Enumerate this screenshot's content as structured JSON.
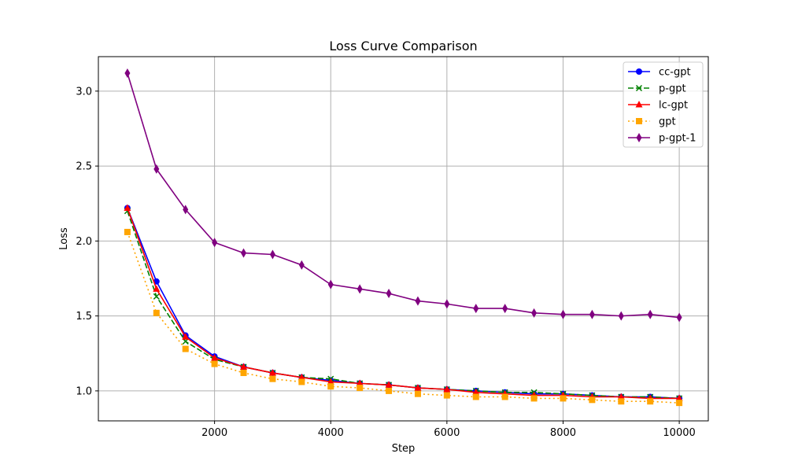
{
  "chart_data": {
    "type": "line",
    "title": "Loss Curve Comparison",
    "xlabel": "Step",
    "ylabel": "Loss",
    "xlim": [
      0,
      10500
    ],
    "ylim": [
      0.8,
      3.23
    ],
    "xticks": [
      2000,
      4000,
      6000,
      8000,
      10000
    ],
    "yticks": [
      1.0,
      1.5,
      2.0,
      2.5,
      3.0
    ],
    "xtick_labels": [
      "2000",
      "4000",
      "6000",
      "8000",
      "10000"
    ],
    "ytick_labels": [
      "1.0",
      "1.5",
      "2.0",
      "2.5",
      "3.0"
    ],
    "grid": true,
    "legend_position": "top-right",
    "x": [
      500,
      1000,
      1500,
      2000,
      2500,
      3000,
      3500,
      4000,
      4500,
      5000,
      5500,
      6000,
      6500,
      7000,
      7500,
      8000,
      8500,
      9000,
      9500,
      10000
    ],
    "series": [
      {
        "name": "cc-gpt",
        "color": "#0000ff",
        "linestyle": "solid",
        "marker": "circle",
        "values": [
          2.22,
          1.73,
          1.37,
          1.23,
          1.16,
          1.12,
          1.09,
          1.07,
          1.05,
          1.04,
          1.02,
          1.01,
          1.0,
          0.99,
          0.98,
          0.98,
          0.97,
          0.96,
          0.96,
          0.95
        ]
      },
      {
        "name": "p-gpt",
        "color": "#008000",
        "linestyle": "dashed",
        "marker": "x",
        "values": [
          2.2,
          1.63,
          1.33,
          1.21,
          1.16,
          1.12,
          1.09,
          1.08,
          1.05,
          1.04,
          1.02,
          1.01,
          1.0,
          0.99,
          0.99,
          0.98,
          0.97,
          0.96,
          0.96,
          0.95
        ]
      },
      {
        "name": "lc-gpt",
        "color": "#ff0000",
        "linestyle": "solid",
        "marker": "triangle",
        "values": [
          2.22,
          1.68,
          1.36,
          1.22,
          1.16,
          1.12,
          1.09,
          1.06,
          1.05,
          1.04,
          1.02,
          1.01,
          0.99,
          0.98,
          0.97,
          0.97,
          0.96,
          0.96,
          0.95,
          0.95
        ]
      },
      {
        "name": "gpt",
        "color": "#ffa500",
        "linestyle": "dotted",
        "marker": "square",
        "values": [
          2.06,
          1.52,
          1.28,
          1.18,
          1.12,
          1.08,
          1.06,
          1.03,
          1.02,
          1.0,
          0.98,
          0.97,
          0.96,
          0.96,
          0.95,
          0.95,
          0.94,
          0.93,
          0.93,
          0.92
        ]
      },
      {
        "name": "p-gpt-1",
        "color": "#800080",
        "linestyle": "solid",
        "marker": "diamond",
        "values": [
          3.12,
          2.48,
          2.21,
          1.99,
          1.92,
          1.91,
          1.84,
          1.71,
          1.68,
          1.65,
          1.6,
          1.58,
          1.55,
          1.55,
          1.52,
          1.51,
          1.51,
          1.5,
          1.51,
          1.49
        ]
      }
    ]
  }
}
